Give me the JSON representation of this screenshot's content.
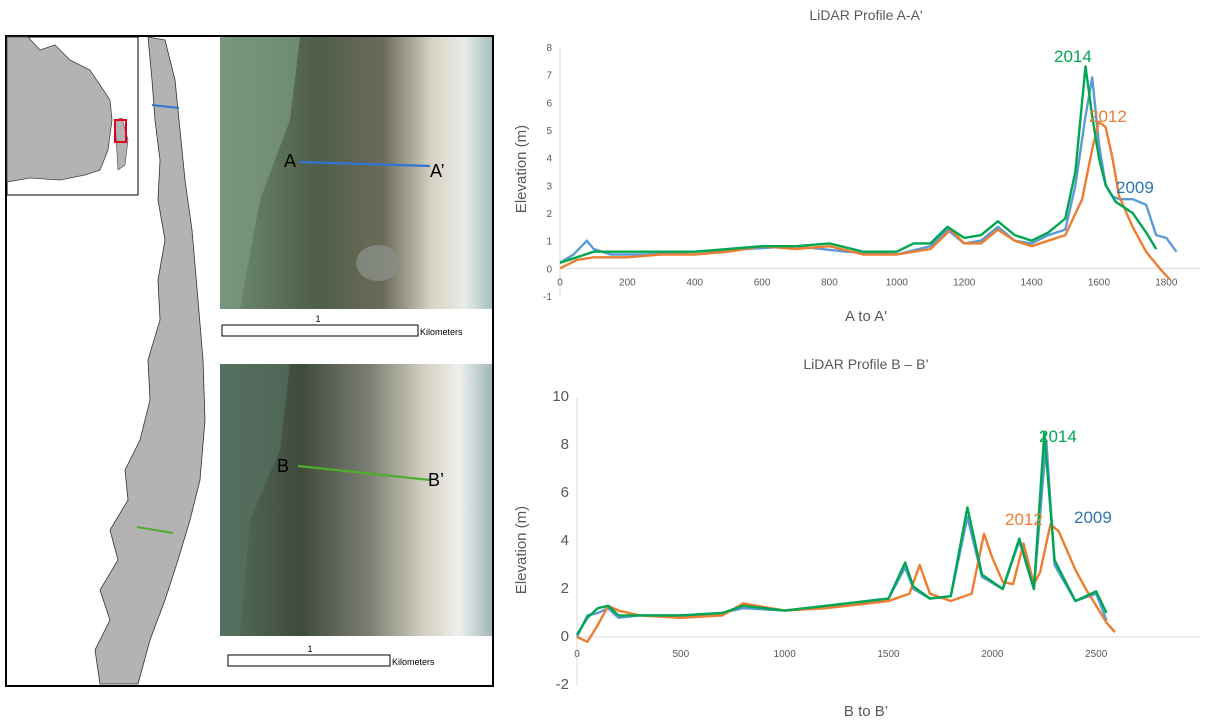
{
  "map_panel": {
    "top_photo": {
      "label_start": "A",
      "label_end": "A’",
      "scalebar_value": "1",
      "scalebar_unit": "Kilometers"
    },
    "bottom_photo": {
      "label_start": "B",
      "label_end": "B’",
      "scalebar_value": "1",
      "scalebar_unit": "Kilometers"
    },
    "colors": {
      "land": "#b3b3b3",
      "water_bg": "#ffffff",
      "transect_a": "#2e75d6",
      "transect_b": "#4cae2c",
      "locator_box": "#e3001b"
    }
  },
  "chart_data": [
    {
      "type": "line",
      "title": "LiDAR Profile A-A'",
      "xlabel": "A to A'",
      "ylabel": "Elevation (m)",
      "xlim": [
        0,
        1900
      ],
      "ylim": [
        -1,
        8
      ],
      "xticks": [
        0,
        200,
        400,
        600,
        800,
        1000,
        1200,
        1400,
        1600,
        1800
      ],
      "yticks": [
        -1,
        0,
        1,
        2,
        3,
        4,
        5,
        6,
        7,
        8
      ],
      "grid": false,
      "series": [
        {
          "name": "2009",
          "color": "#5b9bd5",
          "x": [
            0,
            40,
            80,
            100,
            150,
            250,
            400,
            550,
            700,
            850,
            1000,
            1100,
            1150,
            1200,
            1250,
            1300,
            1350,
            1400,
            1450,
            1500,
            1530,
            1560,
            1580,
            1600,
            1620,
            1640,
            1660,
            1700,
            1740,
            1770,
            1800,
            1830
          ],
          "y": [
            0.2,
            0.5,
            1.0,
            0.7,
            0.5,
            0.5,
            0.6,
            0.7,
            0.8,
            0.6,
            0.5,
            0.8,
            1.4,
            0.9,
            1.0,
            1.5,
            1.0,
            0.9,
            1.2,
            1.4,
            3.0,
            5.5,
            6.9,
            4.5,
            3.0,
            2.6,
            2.5,
            2.5,
            2.3,
            1.2,
            1.1,
            0.6
          ]
        },
        {
          "name": "2012",
          "color": "#ed7d31",
          "x": [
            0,
            50,
            100,
            200,
            300,
            400,
            500,
            600,
            700,
            800,
            900,
            1000,
            1100,
            1160,
            1200,
            1250,
            1300,
            1350,
            1400,
            1450,
            1500,
            1550,
            1580,
            1600,
            1620,
            1640,
            1660,
            1700,
            1740,
            1780,
            1810
          ],
          "y": [
            0.0,
            0.3,
            0.4,
            0.4,
            0.5,
            0.5,
            0.6,
            0.8,
            0.7,
            0.8,
            0.5,
            0.5,
            0.7,
            1.4,
            0.9,
            0.9,
            1.4,
            1.0,
            0.8,
            1.0,
            1.2,
            2.5,
            4.3,
            5.3,
            5.1,
            4.0,
            2.6,
            1.5,
            0.6,
            0.0,
            -0.4
          ]
        },
        {
          "name": "2014",
          "color": "#00a651",
          "x": [
            0,
            50,
            100,
            200,
            300,
            400,
            500,
            600,
            700,
            800,
            900,
            1000,
            1050,
            1100,
            1150,
            1200,
            1250,
            1300,
            1350,
            1400,
            1450,
            1500,
            1530,
            1560,
            1580,
            1600,
            1620,
            1650,
            1700,
            1740,
            1770
          ],
          "y": [
            0.2,
            0.4,
            0.6,
            0.6,
            0.6,
            0.6,
            0.7,
            0.8,
            0.8,
            0.9,
            0.6,
            0.6,
            0.9,
            0.9,
            1.5,
            1.1,
            1.2,
            1.7,
            1.2,
            1.0,
            1.3,
            1.8,
            3.5,
            7.3,
            5.5,
            4.0,
            3.0,
            2.4,
            2.0,
            1.3,
            0.7
          ]
        }
      ],
      "annotations": [
        "2014",
        "2012",
        "2009"
      ]
    },
    {
      "type": "line",
      "title": "LiDAR Profile B – B’",
      "xlabel": "B to B’",
      "ylabel": "Elevation (m)",
      "xlim": [
        0,
        3000
      ],
      "ylim": [
        -2,
        10
      ],
      "xticks": [
        0,
        500,
        1000,
        1500,
        2000,
        2500
      ],
      "yticks": [
        -2,
        0,
        2,
        4,
        6,
        8,
        10
      ],
      "grid": false,
      "series": [
        {
          "name": "2009",
          "color": "#5b9bd5",
          "x": [
            0,
            50,
            100,
            150,
            200,
            300,
            500,
            700,
            800,
            1000,
            1200,
            1400,
            1500,
            1580,
            1620,
            1700,
            1800,
            1880,
            1950,
            2050,
            2130,
            2200,
            2260,
            2300,
            2400,
            2500,
            2550
          ],
          "y": [
            0.0,
            0.9,
            1.0,
            1.2,
            0.8,
            0.9,
            0.9,
            1.0,
            1.2,
            1.1,
            1.3,
            1.5,
            1.6,
            2.9,
            2.0,
            1.6,
            1.7,
            5.0,
            2.5,
            2.0,
            4.0,
            2.0,
            8.2,
            3.0,
            1.5,
            1.8,
            0.7
          ]
        },
        {
          "name": "2012",
          "color": "#ed7d31",
          "x": [
            0,
            50,
            100,
            150,
            200,
            300,
            500,
            700,
            800,
            1000,
            1200,
            1400,
            1500,
            1600,
            1650,
            1700,
            1800,
            1900,
            1960,
            2000,
            2050,
            2100,
            2150,
            2200,
            2230,
            2280,
            2320,
            2350,
            2400,
            2450,
            2500,
            2550,
            2590
          ],
          "y": [
            0.0,
            -0.2,
            0.5,
            1.3,
            1.1,
            0.9,
            0.8,
            0.9,
            1.4,
            1.1,
            1.2,
            1.4,
            1.5,
            1.8,
            3.0,
            1.8,
            1.5,
            1.8,
            4.3,
            3.3,
            2.3,
            2.2,
            3.9,
            2.2,
            2.7,
            4.7,
            4.4,
            3.8,
            2.8,
            2.0,
            1.3,
            0.6,
            0.2
          ]
        },
        {
          "name": "2014",
          "color": "#00a651",
          "x": [
            0,
            50,
            100,
            150,
            200,
            300,
            500,
            700,
            800,
            1000,
            1200,
            1400,
            1500,
            1580,
            1620,
            1700,
            1800,
            1880,
            1950,
            2050,
            2130,
            2200,
            2250,
            2300,
            2400,
            2500,
            2550
          ],
          "y": [
            0.1,
            0.8,
            1.2,
            1.3,
            0.9,
            0.9,
            0.9,
            1.0,
            1.3,
            1.1,
            1.3,
            1.5,
            1.6,
            3.1,
            2.1,
            1.6,
            1.7,
            5.4,
            2.6,
            2.0,
            4.1,
            2.0,
            8.5,
            3.2,
            1.5,
            1.9,
            1.0
          ]
        }
      ],
      "annotations": [
        "2014",
        "2012",
        "2009"
      ]
    }
  ]
}
